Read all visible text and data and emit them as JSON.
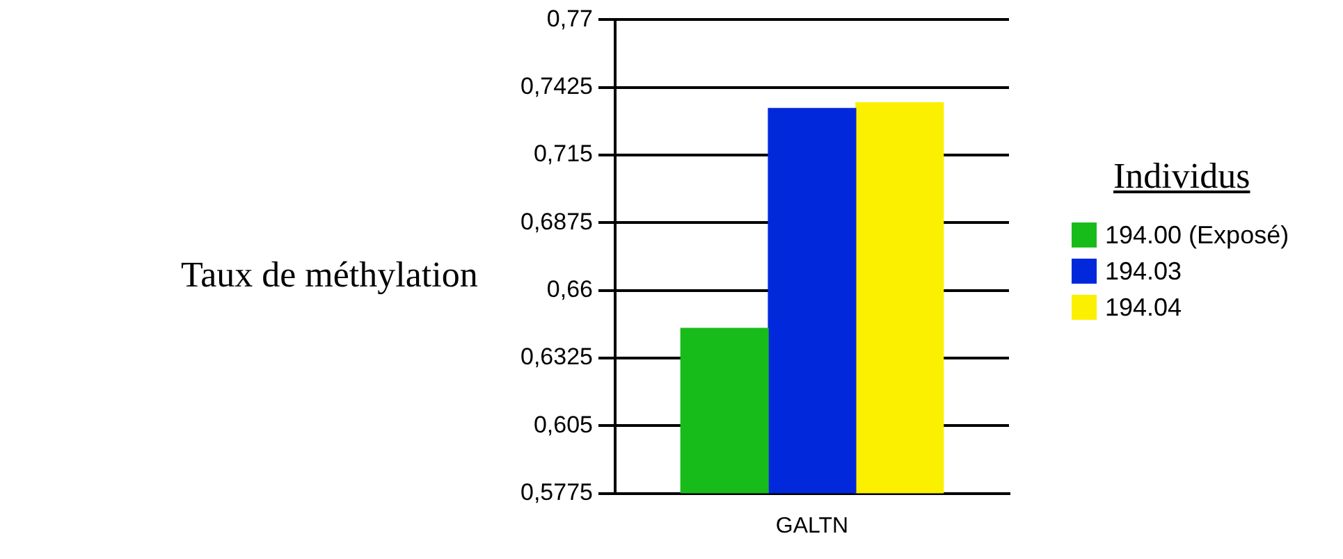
{
  "chart_data": {
    "type": "bar",
    "ylabel": "Taux de méthylation",
    "legend_title": "Individus",
    "categories": [
      null,
      "GALTN",
      null
    ],
    "series": [
      {
        "name": "194.00 (Exposé)",
        "color": "#18bc1a",
        "values": [
          0.6446,
          null,
          null
        ]
      },
      {
        "name": "194.03",
        "color": "#0228dc",
        "values": [
          null,
          0.734,
          null
        ]
      },
      {
        "name": "194.04",
        "color": "#fbf000",
        "values": [
          null,
          null,
          0.7363
        ]
      }
    ],
    "ylim": [
      0.5775,
      0.77
    ],
    "yticks": [
      {
        "value": 0.5775,
        "label": "0,5775"
      },
      {
        "value": 0.605,
        "label": "0,605"
      },
      {
        "value": 0.6325,
        "label": "0,6325"
      },
      {
        "value": 0.66,
        "label": "0,66"
      },
      {
        "value": 0.6875,
        "label": "0,6875"
      },
      {
        "value": 0.715,
        "label": "0,715"
      },
      {
        "value": 0.7425,
        "label": "0,7425"
      },
      {
        "value": 0.77,
        "label": "0,77"
      }
    ],
    "grid": "y",
    "legend": "right"
  }
}
